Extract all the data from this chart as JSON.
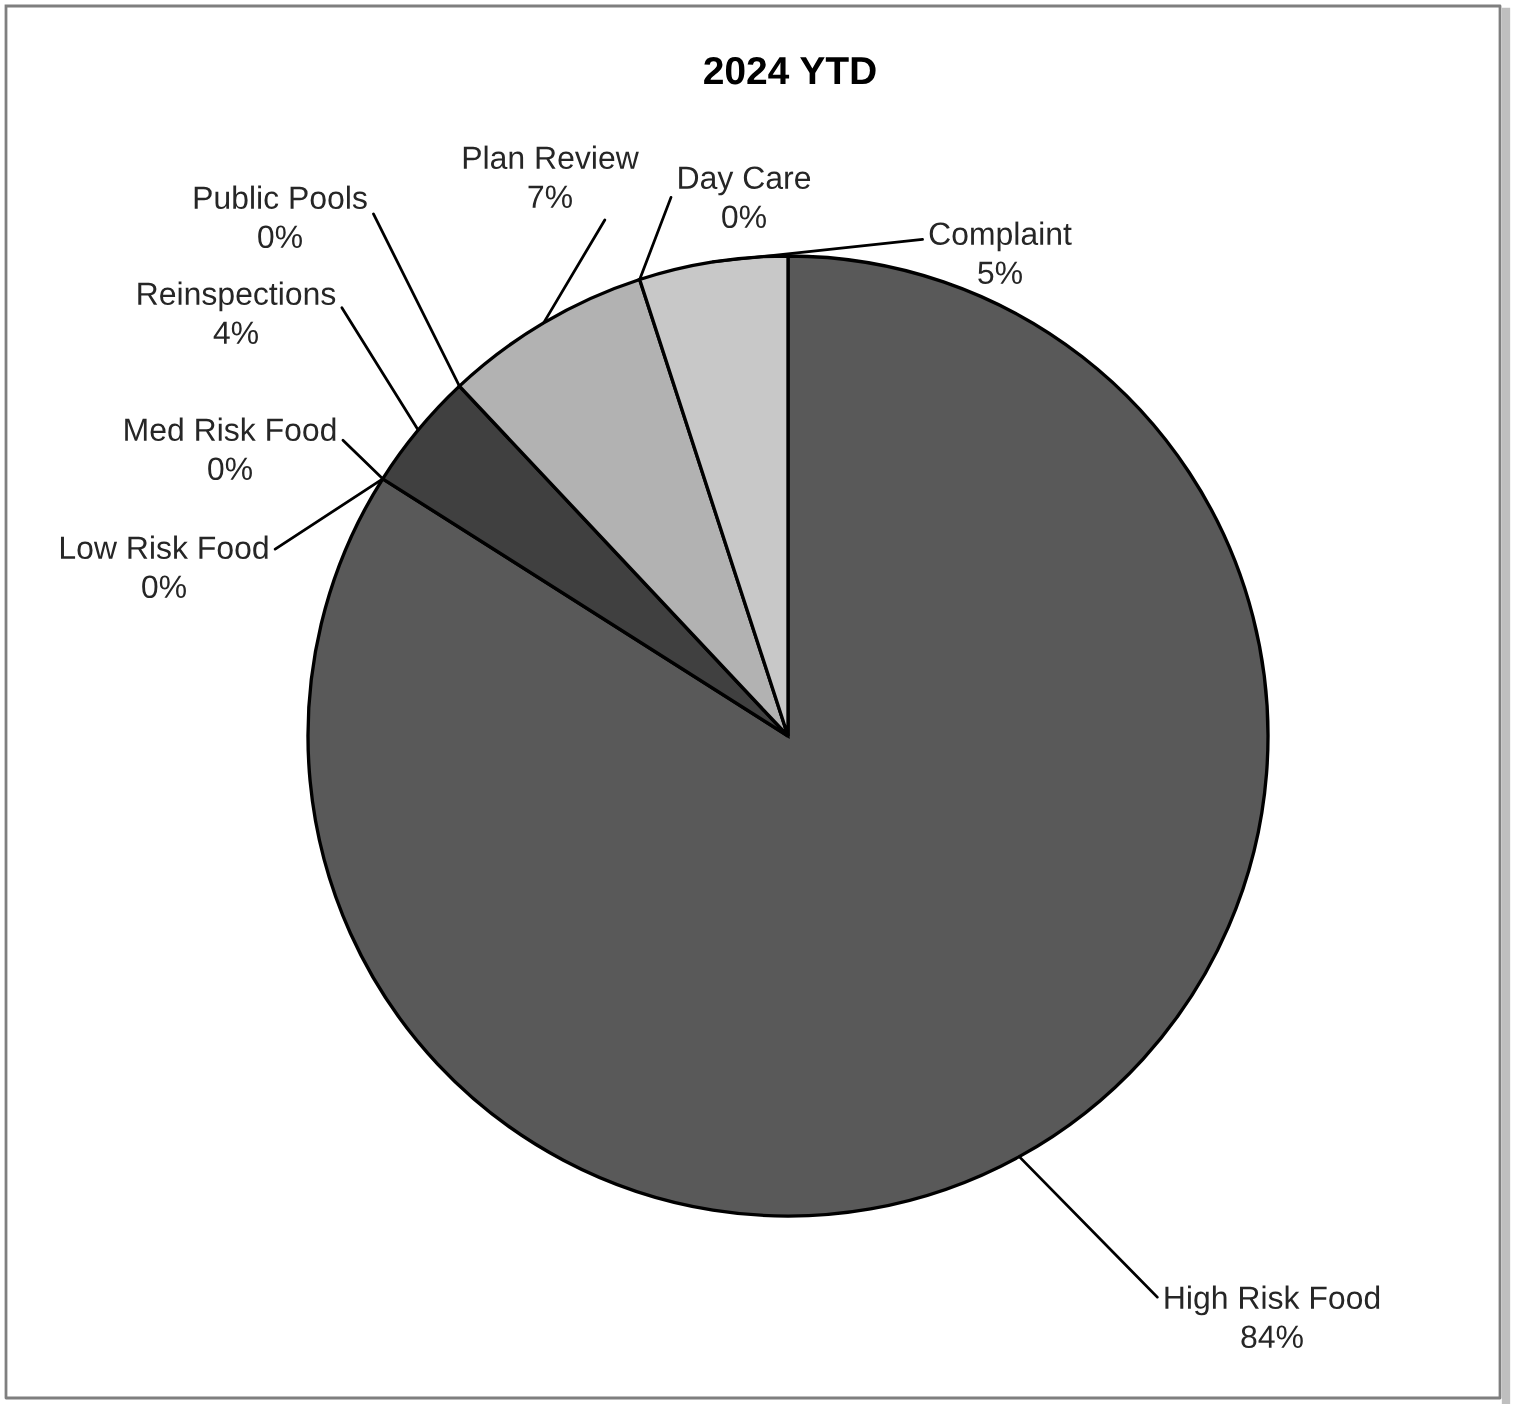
{
  "chart_data": {
    "type": "pie",
    "title": "2024 YTD",
    "categories": [
      "High Risk Food",
      "Low Risk Food",
      "Med Risk Food",
      "Reinspections",
      "Public Pools",
      "Plan Review",
      "Day Care",
      "Complaint"
    ],
    "values": [
      84,
      0,
      0,
      4,
      0,
      7,
      0,
      5
    ],
    "value_labels": [
      "84%",
      "0%",
      "0%",
      "4%",
      "0%",
      "7%",
      "0%",
      "5%"
    ],
    "colors": [
      "#595959",
      "#7f7f7f",
      "#333333",
      "#404040",
      "#262626",
      "#b2b2b2",
      "#8c8c8c",
      "#c8c8c8"
    ]
  }
}
